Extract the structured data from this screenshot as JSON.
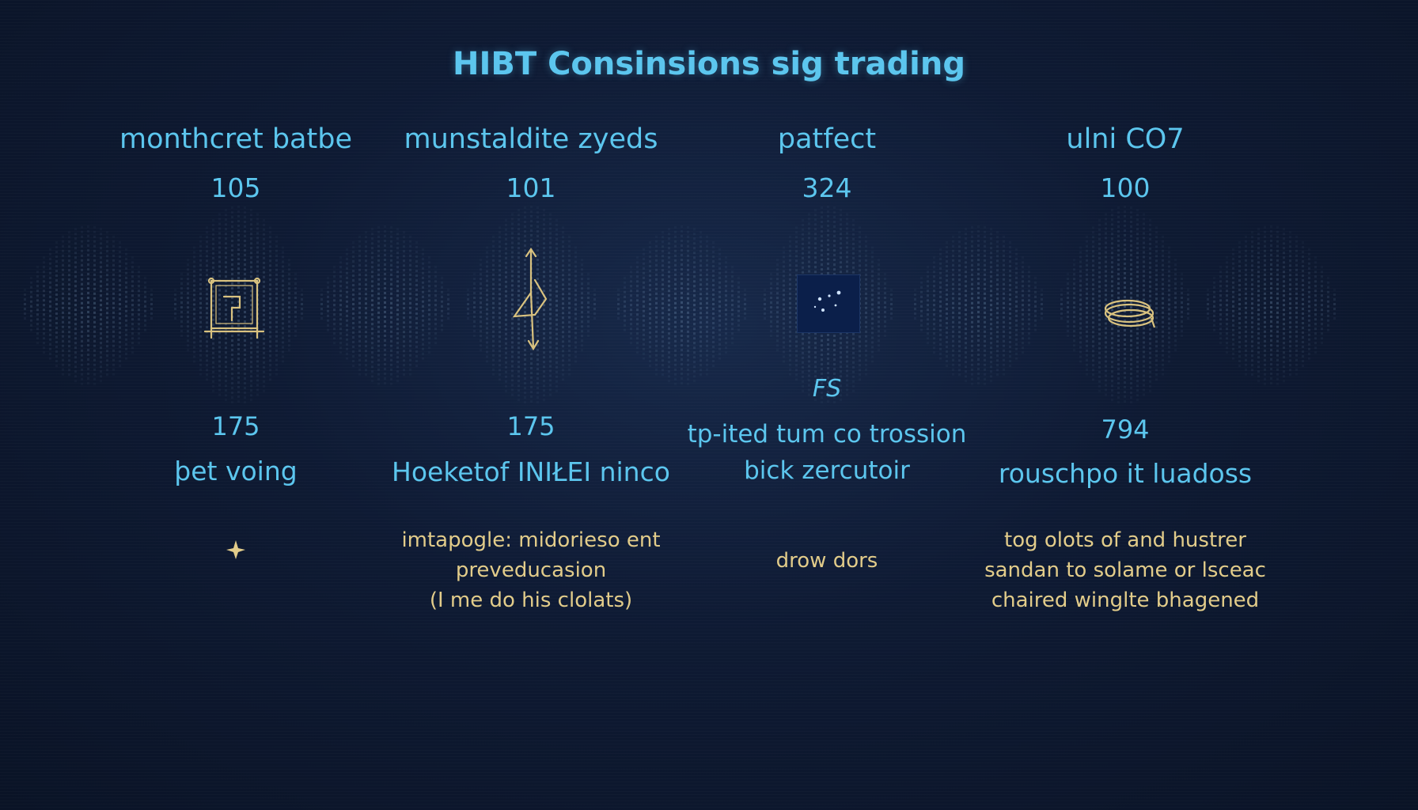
{
  "title": "HIBT Consinsions sig trading",
  "columns": [
    {
      "label": "monthcret batbe",
      "value": "105",
      "icon": "framed-glyph-icon",
      "number": "175",
      "sub": [
        "þet voing"
      ],
      "desc": []
    },
    {
      "label": "munstaldite zyeds",
      "value": "101",
      "icon": "arrow-path-icon",
      "number": "175",
      "sub": [
        "Hoeketof INIŁEI ninco"
      ],
      "desc": [
        "imtapogle: midoriesо ent",
        "preveducasion",
        "(I me do his clolats)"
      ]
    },
    {
      "label": "patfect",
      "value": "324",
      "icon": "star-cluster-icon",
      "mark": "FS",
      "sub": [
        "tp-ited tum co trossion",
        "bick zercutoir"
      ],
      "desc": [
        "drow dors"
      ]
    },
    {
      "label": "ulni CO7",
      "value": "100",
      "icon": "coil-icon",
      "number": "794",
      "sub": [
        "rouschpo it luadoss"
      ],
      "desc": [
        "tog olots of and hustrer",
        "sandan to solame or lsceac",
        "chaired winglte bhagened"
      ]
    }
  ],
  "colors": {
    "accent": "#5cc6ee",
    "gold": "#e2cc8a",
    "background": "#0e1a33"
  }
}
